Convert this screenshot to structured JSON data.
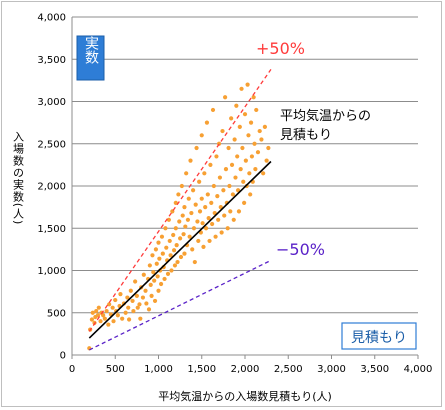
{
  "chart_data": {
    "type": "scatter",
    "xlabel": "平均気温からの入場数見積もり(人)",
    "ylabel": "入場数の実数(人)",
    "xlim": [
      0,
      4000
    ],
    "ylim": [
      0,
      4000
    ],
    "x_ticks": [
      "0",
      "500",
      "1,000",
      "1,500",
      "2,000",
      "2,500",
      "3,000",
      "3,500",
      "4,000"
    ],
    "y_ticks": [
      "0",
      "500",
      "1,000",
      "1,500",
      "2,000",
      "2,500",
      "3,000",
      "3,500",
      "4,000"
    ],
    "grid": "horizontal",
    "y_label_box": "実数",
    "x_label_box": "見積もり",
    "point_color": "#f7a033",
    "lines": [
      {
        "label": "平均気温からの見積もり",
        "color": "#000000",
        "dash": "solid",
        "x": [
          200,
          2300
        ],
        "y": [
          200,
          2290
        ]
      },
      {
        "label": "+50%",
        "color": "#ff3b3b",
        "dash": "dashed",
        "x": [
          200,
          2300
        ],
        "y": [
          280,
          3380
        ]
      },
      {
        "label": "−50%",
        "color": "#5a22c8",
        "dash": "dashed",
        "x": [
          200,
          2300
        ],
        "y": [
          60,
          1120
        ]
      }
    ],
    "points": [
      [
        200,
        80
      ],
      [
        210,
        300
      ],
      [
        230,
        420
      ],
      [
        240,
        500
      ],
      [
        260,
        380
      ],
      [
        270,
        450
      ],
      [
        280,
        520
      ],
      [
        300,
        470
      ],
      [
        310,
        560
      ],
      [
        330,
        400
      ],
      [
        340,
        500
      ],
      [
        360,
        470
      ],
      [
        380,
        430
      ],
      [
        400,
        520
      ],
      [
        420,
        360
      ],
      [
        430,
        600
      ],
      [
        450,
        480
      ],
      [
        470,
        560
      ],
      [
        480,
        400
      ],
      [
        500,
        650
      ],
      [
        510,
        520
      ],
      [
        530,
        470
      ],
      [
        550,
        580
      ],
      [
        560,
        720
      ],
      [
        580,
        430
      ],
      [
        600,
        610
      ],
      [
        620,
        500
      ],
      [
        640,
        680
      ],
      [
        650,
        560
      ],
      [
        660,
        420
      ],
      [
        680,
        760
      ],
      [
        700,
        640
      ],
      [
        710,
        520
      ],
      [
        730,
        870
      ],
      [
        750,
        700
      ],
      [
        760,
        560
      ],
      [
        780,
        600
      ],
      [
        790,
        430
      ],
      [
        800,
        800
      ],
      [
        820,
        680
      ],
      [
        830,
        950
      ],
      [
        850,
        760
      ],
      [
        860,
        610
      ],
      [
        880,
        900
      ],
      [
        890,
        540
      ],
      [
        900,
        1060
      ],
      [
        910,
        830
      ],
      [
        920,
        700
      ],
      [
        930,
        1180
      ],
      [
        940,
        980
      ],
      [
        950,
        880
      ],
      [
        960,
        640
      ],
      [
        970,
        1250
      ],
      [
        980,
        1080
      ],
      [
        990,
        930
      ],
      [
        1000,
        760
      ],
      [
        1000,
        1330
      ],
      [
        1010,
        1140
      ],
      [
        1020,
        1000
      ],
      [
        1030,
        840
      ],
      [
        1040,
        1400
      ],
      [
        1050,
        1200
      ],
      [
        1060,
        1040
      ],
      [
        1070,
        900
      ],
      [
        1080,
        1500
      ],
      [
        1090,
        1270
      ],
      [
        1100,
        1120
      ],
      [
        1110,
        960
      ],
      [
        1120,
        1600
      ],
      [
        1130,
        1350
      ],
      [
        1140,
        1180
      ],
      [
        1150,
        1000
      ],
      [
        1160,
        1700
      ],
      [
        1170,
        1420
      ],
      [
        1180,
        1240
      ],
      [
        1190,
        1060
      ],
      [
        1200,
        1800
      ],
      [
        1200,
        1500
      ],
      [
        1210,
        1300
      ],
      [
        1220,
        1100
      ],
      [
        1230,
        1900
      ],
      [
        1240,
        1580
      ],
      [
        1250,
        1380
      ],
      [
        1260,
        1160
      ],
      [
        1270,
        2000
      ],
      [
        1280,
        1650
      ],
      [
        1290,
        1430
      ],
      [
        1300,
        1200
      ],
      [
        1300,
        1750
      ],
      [
        1310,
        1520
      ],
      [
        1320,
        2150
      ],
      [
        1330,
        1300
      ],
      [
        1340,
        1600
      ],
      [
        1350,
        1850
      ],
      [
        1360,
        1400
      ],
      [
        1370,
        2300
      ],
      [
        1380,
        1680
      ],
      [
        1390,
        1250
      ],
      [
        1400,
        1950
      ],
      [
        1410,
        1500
      ],
      [
        1420,
        1100
      ],
      [
        1430,
        1780
      ],
      [
        1440,
        2450
      ],
      [
        1450,
        1580
      ],
      [
        1460,
        1350
      ],
      [
        1470,
        2050
      ],
      [
        1480,
        1700
      ],
      [
        1490,
        1450
      ],
      [
        1500,
        2600
      ],
      [
        1500,
        1850
      ],
      [
        1510,
        1560
      ],
      [
        1520,
        1280
      ],
      [
        1530,
        2150
      ],
      [
        1540,
        1750
      ],
      [
        1550,
        1500
      ],
      [
        1560,
        2750
      ],
      [
        1570,
        1900
      ],
      [
        1580,
        1620
      ],
      [
        1590,
        1350
      ],
      [
        1600,
        2250
      ],
      [
        1610,
        1800
      ],
      [
        1620,
        1550
      ],
      [
        1630,
        2900
      ],
      [
        1640,
        2000
      ],
      [
        1650,
        1680
      ],
      [
        1660,
        1400
      ],
      [
        1670,
        2350
      ],
      [
        1680,
        1880
      ],
      [
        1690,
        1600
      ],
      [
        1700,
        2500
      ],
      [
        1710,
        2100
      ],
      [
        1720,
        1750
      ],
      [
        1730,
        1450
      ],
      [
        1740,
        2650
      ],
      [
        1750,
        1950
      ],
      [
        1760,
        1650
      ],
      [
        1770,
        3050
      ],
      [
        1780,
        2200
      ],
      [
        1790,
        1800
      ],
      [
        1800,
        1500
      ],
      [
        1810,
        2450
      ],
      [
        1820,
        2000
      ],
      [
        1830,
        1700
      ],
      [
        1840,
        2800
      ],
      [
        1850,
        2250
      ],
      [
        1860,
        1900
      ],
      [
        1870,
        1600
      ],
      [
        1880,
        2550
      ],
      [
        1890,
        2100
      ],
      [
        1900,
        2950
      ],
      [
        1910,
        2350
      ],
      [
        1920,
        1950
      ],
      [
        1930,
        1700
      ],
      [
        1940,
        2700
      ],
      [
        1950,
        2200
      ],
      [
        1960,
        3150
      ],
      [
        1970,
        2450
      ],
      [
        1980,
        2050
      ],
      [
        1990,
        1800
      ],
      [
        2000,
        2850
      ],
      [
        2010,
        2300
      ],
      [
        2020,
        2000
      ],
      [
        2030,
        3200
      ],
      [
        2040,
        2600
      ],
      [
        2050,
        2150
      ],
      [
        2060,
        1900
      ],
      [
        2070,
        2750
      ],
      [
        2080,
        2350
      ],
      [
        2090,
        2050
      ],
      [
        2100,
        3050
      ],
      [
        2110,
        2500
      ],
      [
        2120,
        2200
      ],
      [
        2130,
        2900
      ],
      [
        2150,
        2400
      ],
      [
        2170,
        2650
      ],
      [
        2190,
        2550
      ],
      [
        2210,
        2150
      ],
      [
        2230,
        2700
      ],
      [
        2250,
        2300
      ],
      [
        2270,
        2450
      ]
    ],
    "annotations": [
      {
        "text": "+50%",
        "color": "#ff3b3b"
      },
      {
        "text": "平均気温からの",
        "color": "#000000"
      },
      {
        "text": "見積もり",
        "color": "#000000"
      },
      {
        "text": "−50%",
        "color": "#5a22c8"
      }
    ]
  }
}
